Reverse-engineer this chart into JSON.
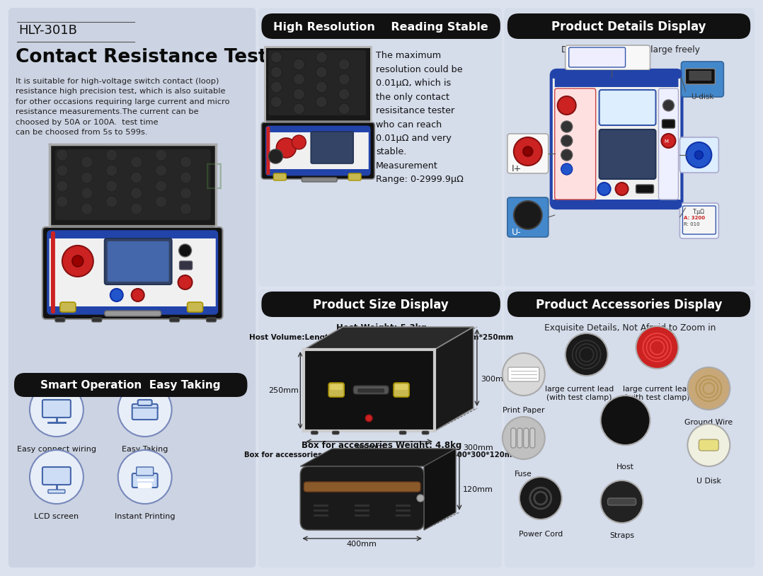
{
  "bg_color": "#dce3ee",
  "title_model": "HLY-301B",
  "title_main": "Contact Resistance Tester",
  "desc_text": "It is suitable for high-voltage switch contact (loop)\nresistance high precision test, which is also suitable\nfor other occasions requiring large current and micro\nresistance measurements.The current can be\nchoosed by 50A or 100A.  test time\ncan be choosed from 5s to 599s.",
  "section1_title": "High Resolution    Reading Stable",
  "section1_text": "The maximum\nresolution could be\n0.01μΩ, which is\nthe only contact\nresisitance tester\nwho can reach\n0.01μΩ and very\nstable.\nMeasurement\nRange: 0-2999.9μΩ",
  "section2_title": "Product Details Display",
  "section2_sub": "Delicate details    Enlarge freely",
  "section3_title": "Smart Operation  Easy Taking",
  "section3_row1": [
    "Easy connect wiring",
    "Easy Taking"
  ],
  "section3_row2": [
    "LCD screen",
    "Instant Printing"
  ],
  "section4_title": "Product Size Display",
  "section4_line1": "Host Weight: 5.3kg",
  "section4_line2": "Host Volume:Length X Width X Height: 360mm*300mm*250mm",
  "section4_dims_host": [
    "300mm",
    "250mm",
    "360mm"
  ],
  "section4_line3": "Box for accessories Weight: 4.8kg",
  "section4_line4": "Box for accessories Size: Length X Width X Height  400*300*120mm",
  "section4_dims_box": [
    "300mm",
    "120mm",
    "400mm"
  ],
  "section5_title": "Product Accessories Display",
  "section5_sub": "Exquisite Details, Not Afraid to Zoom in",
  "section5_labels": [
    "Print Paper",
    "large current lead\n(with test clamp)",
    "large current lead\n(with test clamp)",
    "Fuse",
    "Host",
    "Ground Wire",
    "Power Cord",
    "Straps",
    "U Disk"
  ],
  "panel_color": "#d6dde8",
  "black": "#111111",
  "blue": "#2244aa",
  "red": "#cc2222",
  "silver": "#bbbbbb",
  "white": "#f5f5f5"
}
